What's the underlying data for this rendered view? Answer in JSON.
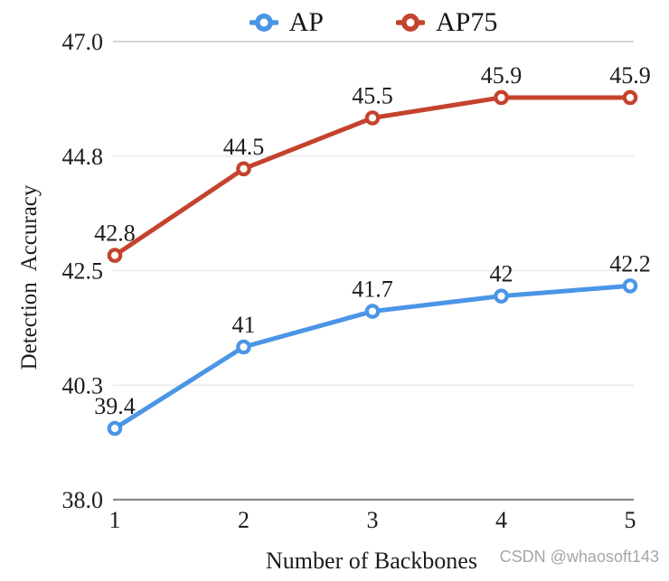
{
  "chart_data": {
    "type": "line",
    "title": "",
    "categories": [
      "1",
      "2",
      "3",
      "4",
      "5"
    ],
    "series": [
      {
        "name": "AP",
        "color": "#4b95e6",
        "values": [
          39.4,
          41,
          41.7,
          42,
          42.2
        ],
        "labels": [
          "39.4",
          "41",
          "41.7",
          "42",
          "42.2"
        ]
      },
      {
        "name": "AP75",
        "color": "#c4432e",
        "values": [
          42.8,
          44.5,
          45.5,
          45.9,
          45.9
        ],
        "labels": [
          "42.8",
          "44.5",
          "45.5",
          "45.9",
          "45.9"
        ]
      }
    ],
    "xlabel": "Number of Backbones",
    "ylabel": "Detection Accuracy",
    "ylim": [
      38.0,
      47.0
    ],
    "yticks": [
      38.0,
      40.3,
      42.5,
      44.8,
      47.0
    ],
    "ytick_labels": [
      "38.0",
      "40.3",
      "42.5",
      "44.8",
      "47.0"
    ],
    "grid": true,
    "legend_position": "top",
    "style": {
      "grid_color": "#e5e5e5",
      "axis_top_color": "#c7c7c7",
      "axis_bottom_color": "#8a8a8a",
      "text_color": "#1c1c1c"
    }
  },
  "watermark": {
    "text": "CSDN @whaosoft143",
    "color": "#a6a6a6"
  }
}
